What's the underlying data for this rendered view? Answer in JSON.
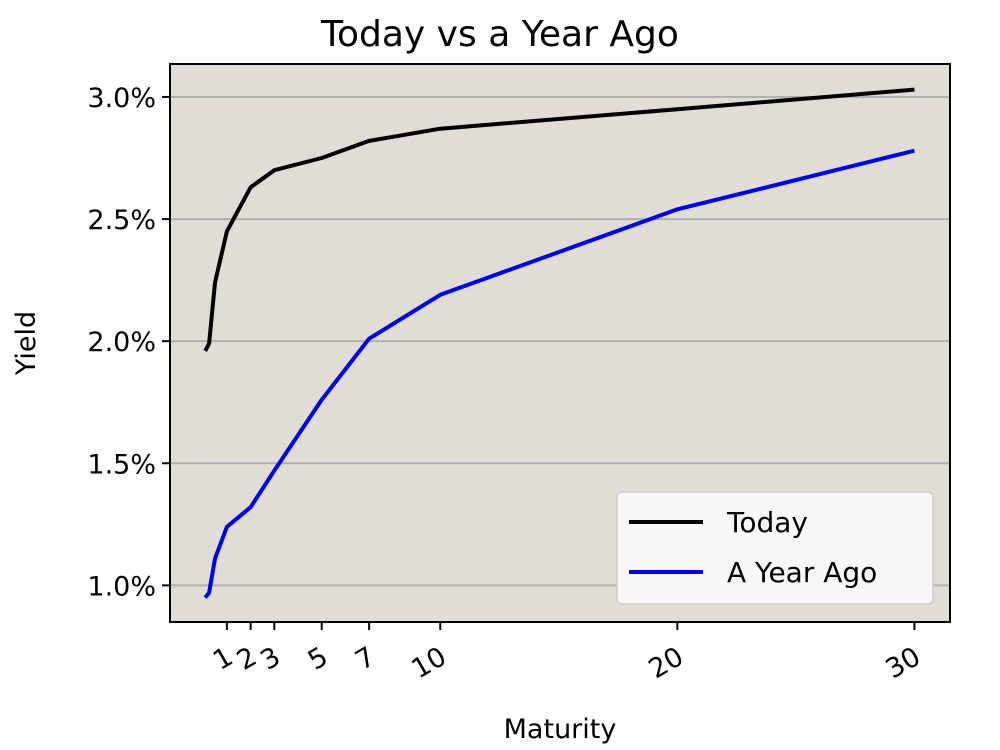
{
  "chart_data": {
    "type": "line",
    "title": "Today vs a Year Ago",
    "xlabel": "Maturity",
    "ylabel": "Yield",
    "x": [
      0.083,
      0.25,
      0.5,
      1,
      2,
      3,
      5,
      7,
      10,
      20,
      30
    ],
    "series": [
      {
        "name": "Today",
        "color": "#000000",
        "values": [
          1.96,
          1.99,
          2.24,
          2.45,
          2.63,
          2.7,
          2.75,
          2.82,
          2.87,
          2.95,
          3.03
        ]
      },
      {
        "name": "A Year Ago",
        "color": "#0000ff",
        "values": [
          0.95,
          0.97,
          1.11,
          1.24,
          1.32,
          1.47,
          1.76,
          2.01,
          2.19,
          2.54,
          2.78
        ]
      }
    ],
    "xticks": [
      1,
      2,
      3,
      5,
      7,
      10,
      20,
      30
    ],
    "xtick_labels": [
      "1",
      "2",
      "3",
      "5",
      "7",
      "10",
      "20",
      "30"
    ],
    "yticks": [
      1.0,
      1.5,
      2.0,
      2.5,
      3.0
    ],
    "ytick_labels": [
      "1.0%",
      "1.5%",
      "2.0%",
      "2.5%",
      "3.0%"
    ],
    "xlim": [
      -1.4,
      31.5
    ],
    "ylim": [
      0.85,
      3.135
    ],
    "grid": "horizontal",
    "legend_position": "lower-right",
    "background": "#e1ddd5",
    "grid_color": "#b0b0b0"
  }
}
